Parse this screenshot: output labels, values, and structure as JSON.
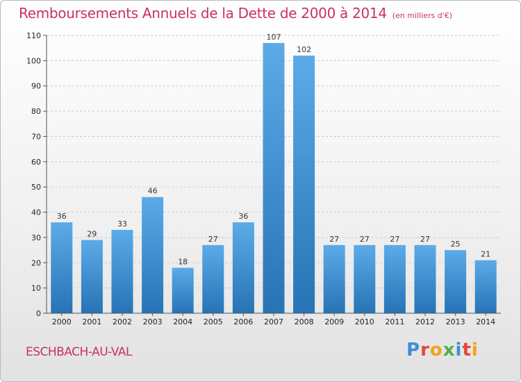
{
  "title": "Remboursements Annuels de la Dette de 2000 à 2014",
  "subtitle": "(en milliers d'€)",
  "place": "ESCHBACH-AU-VAL",
  "logo": {
    "letters": [
      "P",
      "r",
      "o",
      "x",
      "i",
      "t",
      "i"
    ],
    "colors": [
      "#3d8fd6",
      "#e8443a",
      "#f3a21b",
      "#4caf50",
      "#3d8fd6",
      "#e8443a",
      "#f3a21b"
    ]
  },
  "colors": {
    "title": "#c8325e",
    "bar_top": "#5cabe8",
    "bar_bottom": "#2673b6"
  },
  "chart_data": {
    "type": "bar",
    "categories": [
      "2000",
      "2001",
      "2002",
      "2003",
      "2004",
      "2005",
      "2006",
      "2007",
      "2008",
      "2009",
      "2010",
      "2011",
      "2012",
      "2013",
      "2014"
    ],
    "values": [
      36,
      29,
      33,
      46,
      18,
      27,
      36,
      107,
      102,
      27,
      27,
      27,
      27,
      25,
      21
    ],
    "ylim": [
      0,
      110
    ],
    "yticks": [
      0,
      10,
      20,
      30,
      40,
      50,
      60,
      70,
      80,
      90,
      100,
      110
    ],
    "grid": true
  }
}
